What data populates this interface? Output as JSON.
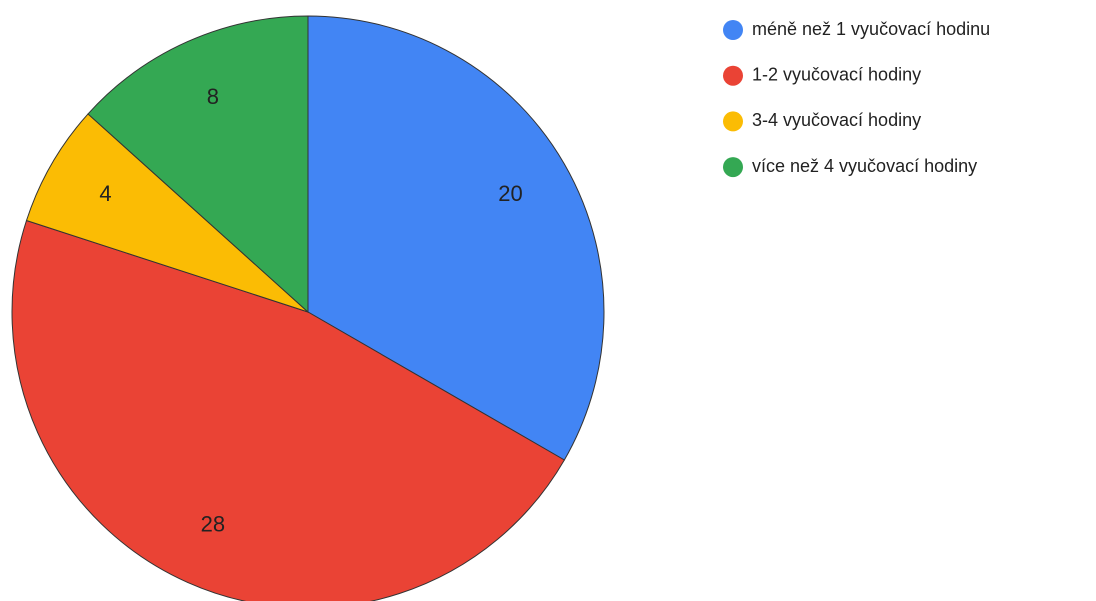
{
  "chart_data": {
    "type": "pie",
    "categories": [
      "méně než 1 vyučovací hodinu",
      "1-2 vyučovací hodiny",
      "3-4 vyučovací hodiny",
      "více než 4 vyučovací hodiny"
    ],
    "values": [
      20,
      28,
      4,
      8
    ],
    "colors": [
      "#4285f4",
      "#ea4335",
      "#fbbc04",
      "#34a853"
    ],
    "legend": "right"
  }
}
